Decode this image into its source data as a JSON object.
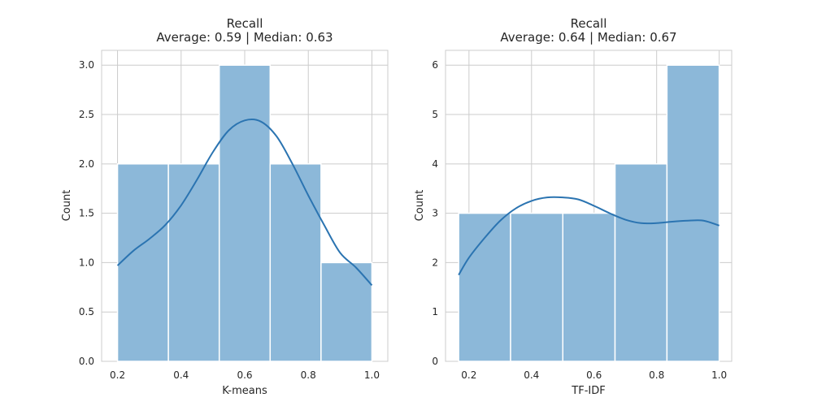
{
  "chart_data": [
    {
      "type": "bar",
      "chart_kind": "histogram with kde",
      "title": "Recall",
      "subtitle": "Average: 0.59 | Median: 0.63",
      "xlabel": "K-means",
      "ylabel": "Count",
      "xlim": [
        0.15,
        1.05
      ],
      "ylim": [
        0,
        3.15
      ],
      "xticks": [
        "0.2",
        "0.4",
        "0.6",
        "0.8",
        "1.0"
      ],
      "yticks": [
        "0.0",
        "0.5",
        "1.0",
        "1.5",
        "2.0",
        "2.5",
        "3.0"
      ],
      "bin_edges": [
        0.2,
        0.36,
        0.52,
        0.68,
        0.84,
        1.0
      ],
      "values": [
        2,
        2,
        3,
        2,
        1
      ],
      "kde": {
        "x": [
          0.2,
          0.25,
          0.3,
          0.35,
          0.4,
          0.45,
          0.5,
          0.55,
          0.6,
          0.65,
          0.7,
          0.75,
          0.8,
          0.85,
          0.9,
          0.95,
          1.0
        ],
        "y": [
          0.97,
          1.12,
          1.24,
          1.38,
          1.58,
          1.84,
          2.12,
          2.34,
          2.44,
          2.43,
          2.28,
          2.0,
          1.68,
          1.38,
          1.1,
          0.95,
          0.77
        ]
      },
      "grid": true,
      "bar_color": "#8cb8d9",
      "line_color": "#2b74b1"
    },
    {
      "type": "bar",
      "chart_kind": "histogram with kde",
      "title": "Recall",
      "subtitle": "Average: 0.64 | Median: 0.67",
      "xlabel": "TF-IDF",
      "ylabel": "Count",
      "xlim": [
        0.125,
        1.04
      ],
      "ylim": [
        0,
        6.3
      ],
      "xticks": [
        "0.2",
        "0.4",
        "0.6",
        "0.8",
        "1.0"
      ],
      "yticks": [
        "0",
        "1",
        "2",
        "3",
        "4",
        "5",
        "6"
      ],
      "bin_edges": [
        0.167,
        0.333,
        0.5,
        0.667,
        0.833,
        1.0
      ],
      "values": [
        3,
        3,
        3,
        4,
        6
      ],
      "kde": {
        "x": [
          0.167,
          0.2,
          0.25,
          0.3,
          0.35,
          0.4,
          0.45,
          0.5,
          0.55,
          0.6,
          0.65,
          0.7,
          0.75,
          0.8,
          0.85,
          0.9,
          0.95,
          1.0
        ],
        "y": [
          1.75,
          2.1,
          2.5,
          2.85,
          3.1,
          3.25,
          3.32,
          3.32,
          3.28,
          3.15,
          3.0,
          2.87,
          2.8,
          2.8,
          2.83,
          2.85,
          2.85,
          2.75
        ]
      },
      "grid": true,
      "bar_color": "#8cb8d9",
      "line_color": "#2b74b1"
    }
  ]
}
